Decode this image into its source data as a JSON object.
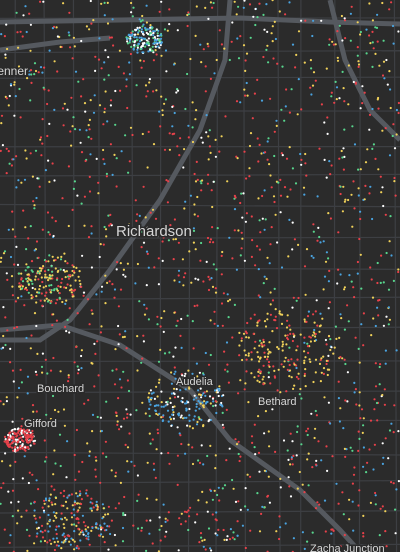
{
  "labels": [
    "tenner",
    "Richardson",
    "Bouchard",
    "Audelia",
    "Gifford",
    "Bethard",
    "Zacha Junction"
  ]
}
